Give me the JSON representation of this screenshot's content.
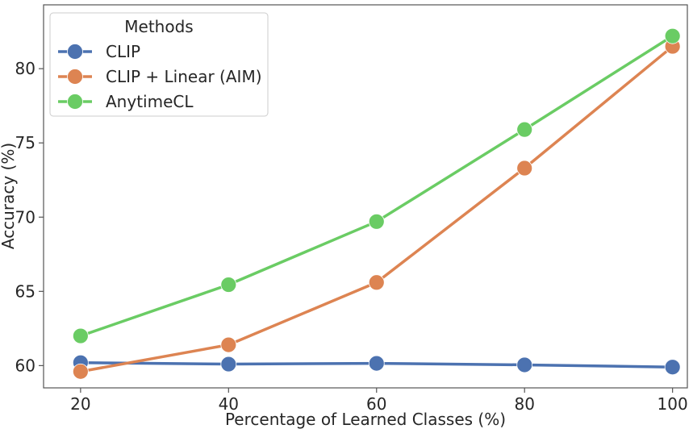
{
  "chart_data": {
    "type": "line",
    "xlabel": "Percentage of Learned Classes (%)",
    "ylabel": "Accuracy (%)",
    "x": [
      20,
      40,
      60,
      80,
      100
    ],
    "xticks": [
      "20",
      "40",
      "60",
      "80",
      "100"
    ],
    "yticks": [
      "60",
      "65",
      "70",
      "75",
      "80"
    ],
    "xlim": [
      15,
      102
    ],
    "ylim": [
      58.5,
      84.3
    ],
    "grid": false,
    "legend": {
      "title": "Methods",
      "placement": "top-left"
    },
    "series": [
      {
        "name": "CLIP",
        "color": "#4c72b0",
        "values": [
          60.2,
          60.1,
          60.15,
          60.05,
          59.9
        ]
      },
      {
        "name": "CLIP + Linear (AIM)",
        "color": "#dd8452",
        "values": [
          59.6,
          61.4,
          65.6,
          73.3,
          81.5
        ]
      },
      {
        "name": "AnytimeCL",
        "color": "#6acc64",
        "values": [
          62.0,
          65.45,
          69.7,
          75.9,
          82.2
        ]
      }
    ]
  }
}
